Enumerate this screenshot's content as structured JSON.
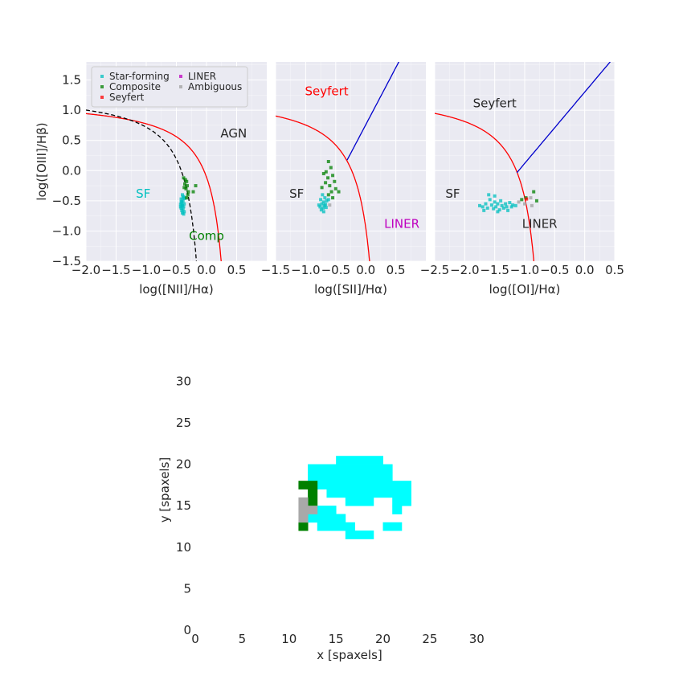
{
  "chart_data": [
    {
      "type": "scatter",
      "panel": "NII",
      "xlabel": "log([NII]/Hα)",
      "ylabel": "log([OIII]/Hβ)",
      "xlim": [
        -2.0,
        1.0
      ],
      "ylim": [
        -1.5,
        1.8
      ],
      "xticks": [
        "−2.0",
        "−1.5",
        "−1.0",
        "−0.5",
        "0.0",
        "0.5"
      ],
      "xtick_values": [
        -2.0,
        -1.5,
        -1.0,
        -0.5,
        0.0,
        0.5
      ],
      "yticks": [
        "−1.5",
        "−1.0",
        "−0.5",
        "0.0",
        "0.5",
        "1.0",
        "1.5"
      ],
      "ytick_values": [
        -1.5,
        -1.0,
        -0.5,
        0.0,
        0.5,
        1.0,
        1.5
      ],
      "grid": true,
      "legend": {
        "placement": "upper-left",
        "entries": [
          {
            "label": "Star-forming",
            "color": "#00bfbf"
          },
          {
            "label": "LINER",
            "color": "#bf00bf"
          },
          {
            "label": "Composite",
            "color": "#008000"
          },
          {
            "label": "Ambiguous",
            "color": "#a0a0a0"
          },
          {
            "label": "Seyfert",
            "color": "#ff0000"
          }
        ]
      },
      "curves": [
        {
          "kind": "kewley01",
          "color": "#ff0000",
          "style": "solid"
        },
        {
          "kind": "kauffmann03",
          "color": "#000000",
          "style": "dashed"
        }
      ],
      "annotations": [
        {
          "text": "AGN",
          "x": 0.45,
          "y": 0.55,
          "color": "#262626"
        },
        {
          "text": "SF",
          "x": -1.05,
          "y": -0.45,
          "color": "#00bfbf"
        },
        {
          "text": "Comp",
          "x": 0.0,
          "y": -1.15,
          "color": "#008000"
        }
      ],
      "series": [
        {
          "name": "Star-forming",
          "color": "#00bfbf",
          "points": [
            [
              -0.4,
              -0.4
            ],
            [
              -0.38,
              -0.43
            ],
            [
              -0.42,
              -0.47
            ],
            [
              -0.39,
              -0.5
            ],
            [
              -0.41,
              -0.52
            ],
            [
              -0.37,
              -0.55
            ],
            [
              -0.43,
              -0.56
            ],
            [
              -0.4,
              -0.58
            ],
            [
              -0.38,
              -0.6
            ],
            [
              -0.42,
              -0.62
            ],
            [
              -0.39,
              -0.64
            ],
            [
              -0.41,
              -0.66
            ],
            [
              -0.37,
              -0.68
            ],
            [
              -0.4,
              -0.7
            ],
            [
              -0.38,
              -0.72
            ],
            [
              -0.42,
              -0.52
            ],
            [
              -0.36,
              -0.46
            ],
            [
              -0.43,
              -0.6
            ],
            [
              -0.39,
              -0.45
            ],
            [
              -0.41,
              -0.57
            ]
          ]
        },
        {
          "name": "Composite",
          "color": "#008000",
          "points": [
            [
              -0.38,
              -0.12
            ],
            [
              -0.35,
              -0.15
            ],
            [
              -0.33,
              -0.18
            ],
            [
              -0.36,
              -0.22
            ],
            [
              -0.32,
              -0.25
            ],
            [
              -0.34,
              -0.3
            ],
            [
              -0.3,
              -0.35
            ],
            [
              -0.22,
              -0.35
            ],
            [
              -0.18,
              -0.25
            ],
            [
              -0.33,
              -0.45
            ],
            [
              -0.37,
              -0.28
            ],
            [
              -0.31,
              -0.4
            ]
          ]
        }
      ]
    },
    {
      "type": "scatter",
      "panel": "SII",
      "xlabel": "log([SII]/Hα)",
      "xlim": [
        -1.5,
        1.0
      ],
      "ylim": [
        -1.5,
        1.8
      ],
      "xticks": [
        "−1.5",
        "−1.0",
        "−0.5",
        "0.0",
        "0.5"
      ],
      "xtick_values": [
        -1.5,
        -1.0,
        -0.5,
        0.0,
        0.5
      ],
      "grid": true,
      "curves": [
        {
          "kind": "kewley01_sii",
          "color": "#ff0000",
          "style": "solid"
        },
        {
          "kind": "seyfert_liner_sii",
          "color": "#0000cc",
          "style": "solid"
        }
      ],
      "annotations": [
        {
          "text": "Seyfert",
          "x": -0.65,
          "y": 1.25,
          "color": "#ff0000"
        },
        {
          "text": "SF",
          "x": -1.15,
          "y": -0.45,
          "color": "#262626"
        },
        {
          "text": "LINER",
          "x": 0.6,
          "y": -0.95,
          "color": "#bf00bf"
        }
      ],
      "series": [
        {
          "name": "Star-forming",
          "color": "#00bfbf",
          "points": [
            [
              -0.72,
              -0.4
            ],
            [
              -0.68,
              -0.45
            ],
            [
              -0.75,
              -0.48
            ],
            [
              -0.7,
              -0.52
            ],
            [
              -0.65,
              -0.5
            ],
            [
              -0.73,
              -0.55
            ],
            [
              -0.69,
              -0.58
            ],
            [
              -0.76,
              -0.6
            ],
            [
              -0.71,
              -0.62
            ],
            [
              -0.67,
              -0.56
            ],
            [
              -0.74,
              -0.65
            ],
            [
              -0.7,
              -0.68
            ],
            [
              -0.62,
              -0.48
            ],
            [
              -0.78,
              -0.57
            ],
            [
              -0.66,
              -0.61
            ]
          ]
        },
        {
          "name": "Composite",
          "color": "#008000",
          "points": [
            [
              -0.62,
              0.15
            ],
            [
              -0.58,
              0.05
            ],
            [
              -0.66,
              -0.02
            ],
            [
              -0.55,
              -0.08
            ],
            [
              -0.63,
              -0.12
            ],
            [
              -0.7,
              -0.05
            ],
            [
              -0.52,
              -0.18
            ],
            [
              -0.6,
              -0.25
            ],
            [
              -0.67,
              -0.2
            ],
            [
              -0.5,
              -0.3
            ],
            [
              -0.57,
              -0.35
            ],
            [
              -0.45,
              -0.35
            ],
            [
              -0.73,
              -0.28
            ],
            [
              -0.62,
              -0.4
            ],
            [
              -0.55,
              -0.45
            ]
          ]
        },
        {
          "name": "Ambiguous",
          "color": "#a0a0a0",
          "points": [
            [
              -0.6,
              -0.57
            ]
          ]
        }
      ]
    },
    {
      "type": "scatter",
      "panel": "OI",
      "xlabel": "log([OI]/Hα)",
      "xlim": [
        -2.5,
        0.5
      ],
      "ylim": [
        -1.5,
        1.8
      ],
      "xticks": [
        "−2.5",
        "−2.0",
        "−1.5",
        "−1.0",
        "−0.5",
        "0.0",
        "0.5"
      ],
      "xtick_values": [
        -2.5,
        -2.0,
        -1.5,
        -1.0,
        -0.5,
        0.0,
        0.5
      ],
      "grid": true,
      "curves": [
        {
          "kind": "kewley01_oi",
          "color": "#ff0000",
          "style": "solid"
        },
        {
          "kind": "seyfert_liner_oi",
          "color": "#0000cc",
          "style": "solid"
        }
      ],
      "annotations": [
        {
          "text": "Seyfert",
          "x": -1.5,
          "y": 1.05,
          "color": "#262626"
        },
        {
          "text": "SF",
          "x": -2.2,
          "y": -0.45,
          "color": "#262626"
        },
        {
          "text": "LINER",
          "x": -0.75,
          "y": -0.95,
          "color": "#262626"
        }
      ],
      "series": [
        {
          "name": "Star-forming",
          "color": "#00bfbf",
          "points": [
            [
              -1.75,
              -0.58
            ],
            [
              -1.7,
              -0.6
            ],
            [
              -1.65,
              -0.55
            ],
            [
              -1.62,
              -0.62
            ],
            [
              -1.58,
              -0.48
            ],
            [
              -1.55,
              -0.57
            ],
            [
              -1.52,
              -0.63
            ],
            [
              -1.5,
              -0.52
            ],
            [
              -1.48,
              -0.6
            ],
            [
              -1.45,
              -0.55
            ],
            [
              -1.42,
              -0.65
            ],
            [
              -1.4,
              -0.5
            ],
            [
              -1.38,
              -0.58
            ],
            [
              -1.35,
              -0.62
            ],
            [
              -1.32,
              -0.55
            ],
            [
              -1.3,
              -0.6
            ],
            [
              -1.28,
              -0.66
            ],
            [
              -1.25,
              -0.53
            ],
            [
              -1.22,
              -0.6
            ],
            [
              -1.2,
              -0.57
            ],
            [
              -1.6,
              -0.4
            ],
            [
              -1.5,
              -0.42
            ],
            [
              -1.68,
              -0.66
            ],
            [
              -1.45,
              -0.68
            ],
            [
              -1.15,
              -0.58
            ]
          ]
        },
        {
          "name": "Composite",
          "color": "#008000",
          "points": [
            [
              -1.05,
              -0.48
            ],
            [
              -0.98,
              -0.45
            ],
            [
              -0.85,
              -0.35
            ],
            [
              -0.8,
              -0.5
            ]
          ]
        },
        {
          "name": "Ambiguous",
          "color": "#a0a0a0",
          "points": [
            [
              -0.9,
              -0.45
            ],
            [
              -0.88,
              -0.58
            ],
            [
              -1.1,
              -0.52
            ],
            [
              -1.0,
              -0.55
            ]
          ]
        },
        {
          "name": "Seyfert",
          "color": "#ff0000",
          "points": [
            [
              -0.97,
              -0.47
            ]
          ]
        }
      ]
    },
    {
      "type": "heatmap",
      "panel": "map",
      "xlabel": "x [spaxels]",
      "ylabel": "y [spaxels]",
      "xlim": [
        0,
        34
      ],
      "ylim": [
        0,
        34
      ],
      "xticks": [
        "0",
        "5",
        "10",
        "15",
        "20",
        "25",
        "30"
      ],
      "xtick_values": [
        0,
        5,
        10,
        15,
        20,
        25,
        30
      ],
      "yticks": [
        "0",
        "5",
        "10",
        "15",
        "20",
        "25",
        "30"
      ],
      "ytick_values": [
        0,
        5,
        10,
        15,
        20,
        25,
        30
      ],
      "grid": false,
      "colors": {
        "Star-forming": "#00ffff",
        "Composite": "#008000",
        "Ambiguous": "#a9a9a9"
      },
      "cells": [
        {
          "class": "Star-forming",
          "x": 15,
          "y": 20,
          "w": 5,
          "h": 1
        },
        {
          "class": "Star-forming",
          "x": 12,
          "y": 19,
          "w": 9,
          "h": 1
        },
        {
          "class": "Star-forming",
          "x": 12,
          "y": 18,
          "w": 9,
          "h": 1
        },
        {
          "class": "Star-forming",
          "x": 13,
          "y": 17,
          "w": 10,
          "h": 1
        },
        {
          "class": "Star-forming",
          "x": 14,
          "y": 16,
          "w": 9,
          "h": 1
        },
        {
          "class": "Star-forming",
          "x": 16,
          "y": 15,
          "w": 3,
          "h": 1
        },
        {
          "class": "Star-forming",
          "x": 21,
          "y": 15,
          "w": 2,
          "h": 1
        },
        {
          "class": "Star-forming",
          "x": 21,
          "y": 14,
          "w": 1,
          "h": 1
        },
        {
          "class": "Star-forming",
          "x": 13,
          "y": 14,
          "w": 2,
          "h": 1
        },
        {
          "class": "Star-forming",
          "x": 12,
          "y": 13,
          "w": 4,
          "h": 1
        },
        {
          "class": "Star-forming",
          "x": 13,
          "y": 12,
          "w": 3,
          "h": 1
        },
        {
          "class": "Star-forming",
          "x": 16,
          "y": 12,
          "w": 1,
          "h": 1
        },
        {
          "class": "Star-forming",
          "x": 20,
          "y": 12,
          "w": 2,
          "h": 1
        },
        {
          "class": "Star-forming",
          "x": 16,
          "y": 11,
          "w": 3,
          "h": 1
        },
        {
          "class": "Composite",
          "x": 11,
          "y": 17,
          "w": 2,
          "h": 1
        },
        {
          "class": "Composite",
          "x": 12,
          "y": 15,
          "w": 1,
          "h": 2
        },
        {
          "class": "Composite",
          "x": 11,
          "y": 12,
          "w": 1,
          "h": 1
        },
        {
          "class": "Ambiguous",
          "x": 11,
          "y": 13,
          "w": 1,
          "h": 3
        },
        {
          "class": "Ambiguous",
          "x": 12,
          "y": 14,
          "w": 1,
          "h": 1
        }
      ]
    }
  ]
}
